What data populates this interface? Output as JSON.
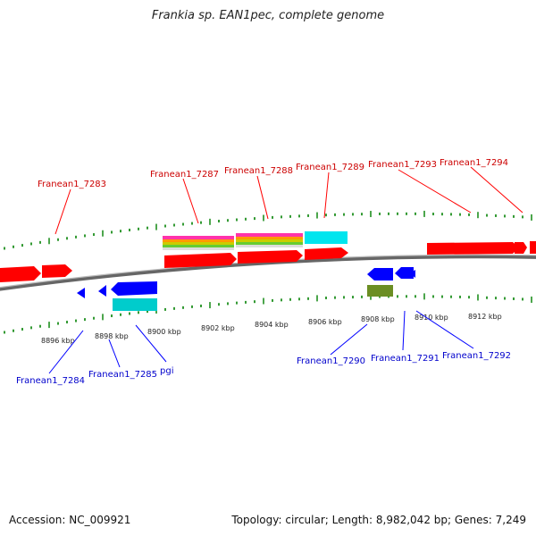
{
  "title": "Frankia sp. EAN1pec, complete genome",
  "footer": {
    "accession": "Accession: NC_009921",
    "summary": "Topology: circular; Length: 8,982,042 bp; Genes: 7,249"
  },
  "colors": {
    "forward_gene": "#ff0000",
    "reverse_gene": "#0000ff",
    "cds_cyan": "#00e5ee",
    "cds_olive": "#6b8e23",
    "backbone": "#888888",
    "tick": "#008000",
    "forward_label": "#cc0000",
    "reverse_label": "#0000cc"
  },
  "axis": {
    "ticks": [
      {
        "label": "8896 kbp"
      },
      {
        "label": "8898 kbp"
      },
      {
        "label": "8900 kbp"
      },
      {
        "label": "8902 kbp"
      },
      {
        "label": "8904 kbp"
      },
      {
        "label": "8906 kbp"
      },
      {
        "label": "8908 kbp"
      },
      {
        "label": "8910 kbp"
      },
      {
        "label": "8912 kbp"
      }
    ]
  },
  "genes": {
    "forward": [
      {
        "name": "Franean1_7283"
      },
      {
        "name": "Franean1_7287"
      },
      {
        "name": "Franean1_7288"
      },
      {
        "name": "Franean1_7289"
      },
      {
        "name": "Franean1_7293"
      },
      {
        "name": "Franean1_7294"
      }
    ],
    "reverse": [
      {
        "name": "Franean1_7284"
      },
      {
        "name": "Franean1_7285"
      },
      {
        "name": "pgi"
      },
      {
        "name": "Franean1_7290"
      },
      {
        "name": "Franean1_7291"
      },
      {
        "name": "Franean1_7292"
      }
    ]
  }
}
